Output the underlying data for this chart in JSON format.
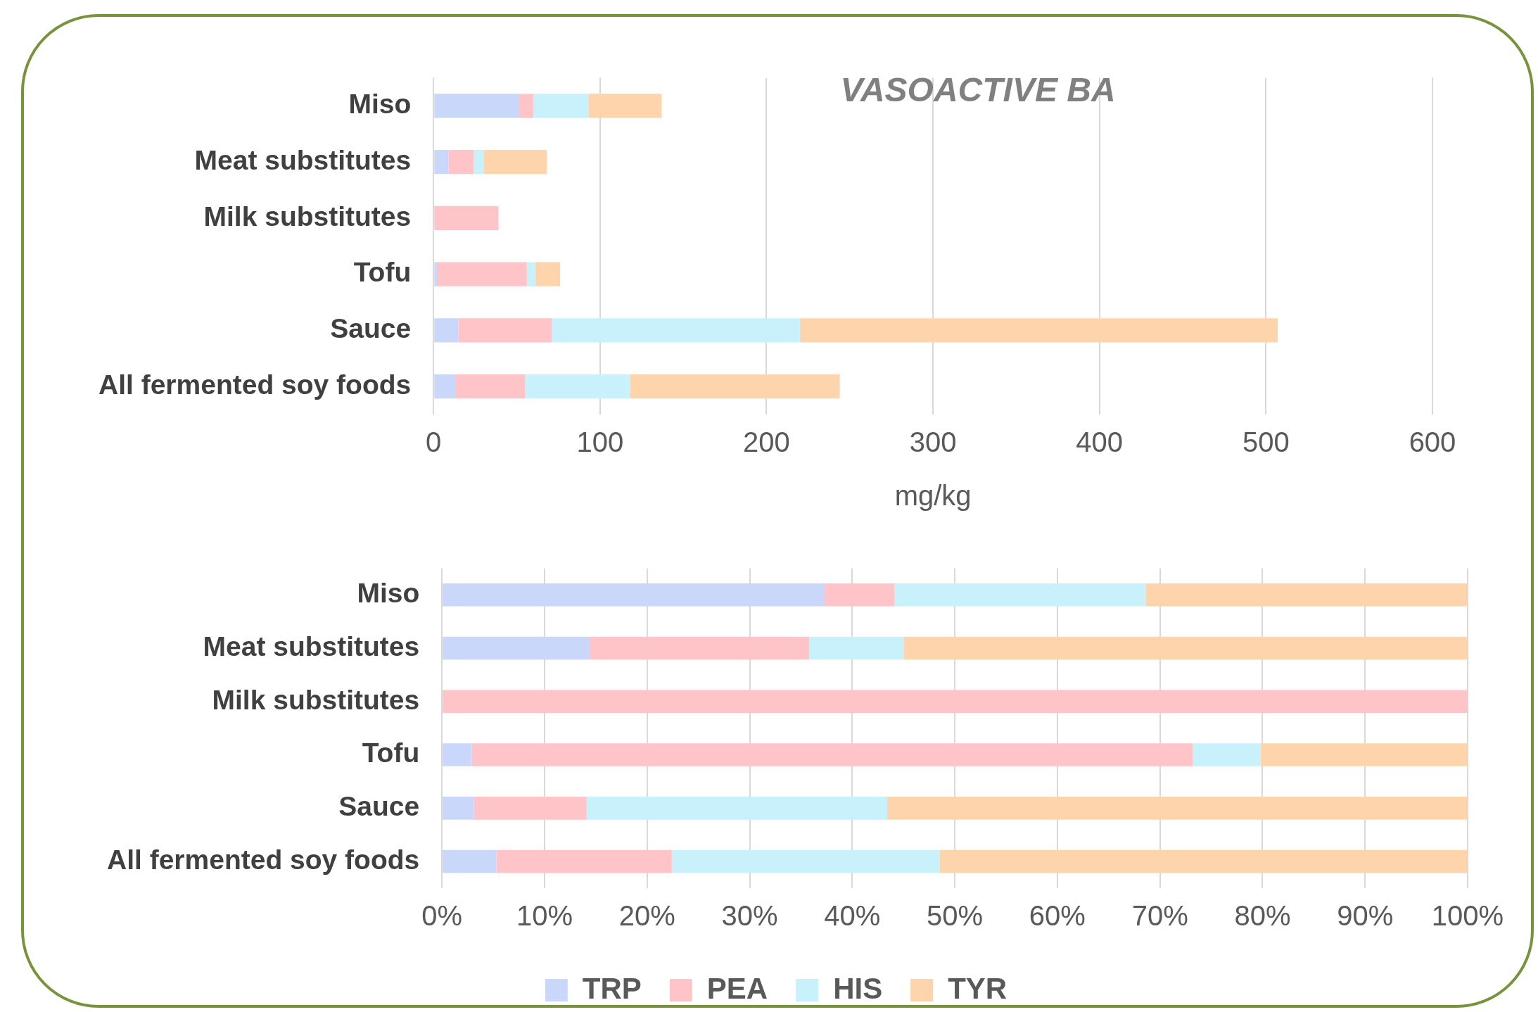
{
  "chart_data": [
    {
      "type": "bar",
      "orientation": "horizontal",
      "stacked": true,
      "title": "VASOACTIVE BA",
      "xlabel": "mg/kg",
      "categories": [
        "Miso",
        "Meat substitutes",
        "Milk substitutes",
        "Tofu",
        "Sauce",
        "All fermented soy foods"
      ],
      "series": [
        {
          "color": "#c9d8fa",
          "values": [
            51,
            9,
            null,
            2,
            15,
            13
          ]
        },
        {
          "color": "#ffc4c8",
          "values": [
            9,
            15,
            39,
            54,
            56,
            42
          ]
        },
        {
          "color": "#c8f1fc",
          "values": [
            33,
            6,
            null,
            5,
            149,
            63
          ]
        },
        {
          "color": "#fdd4ac",
          "values": [
            44,
            38,
            null,
            15,
            287,
            126
          ]
        }
      ],
      "xlim": [
        0,
        600
      ],
      "xticks": [
        0,
        100,
        200,
        300,
        400,
        500,
        600
      ],
      "grid": "x",
      "legend": false
    },
    {
      "type": "bar",
      "orientation": "horizontal",
      "stacked": true,
      "categories": [
        "Miso",
        "Meat substitutes",
        "Milk substitutes",
        "Tofu",
        "Sauce",
        "All fermented soy foods"
      ],
      "series": [
        {
          "name": "TRP",
          "color": "#c9d8fa",
          "values": [
            37.3,
            14.4,
            null,
            2.9,
            3.1,
            5.3
          ]
        },
        {
          "name": "PEA",
          "color": "#ffc4c8",
          "values": [
            6.8,
            21.4,
            100,
            70.3,
            11.0,
            17.1
          ]
        },
        {
          "name": "HIS",
          "color": "#c8f1fc",
          "values": [
            24.5,
            9.2,
            null,
            6.6,
            29.3,
            26.1
          ]
        },
        {
          "name": "TYR",
          "color": "#fdd4ac",
          "values": [
            31.4,
            55.0,
            null,
            20.2,
            56.6,
            51.5
          ]
        }
      ],
      "xlim": [
        0,
        100
      ],
      "xticks": [
        {
          "value": 0,
          "label": "0%"
        },
        {
          "value": 10,
          "label": "10%"
        },
        {
          "value": 20,
          "label": "20%"
        },
        {
          "value": 30,
          "label": "30%"
        },
        {
          "value": 40,
          "label": "40%"
        },
        {
          "value": 50,
          "label": "50%"
        },
        {
          "value": 60,
          "label": "60%"
        },
        {
          "value": 70,
          "label": "70%"
        },
        {
          "value": 80,
          "label": "80%"
        },
        {
          "value": 90,
          "label": "90%"
        },
        {
          "value": 100,
          "label": "100%"
        }
      ],
      "grid": "x",
      "legend": "bottom"
    }
  ]
}
